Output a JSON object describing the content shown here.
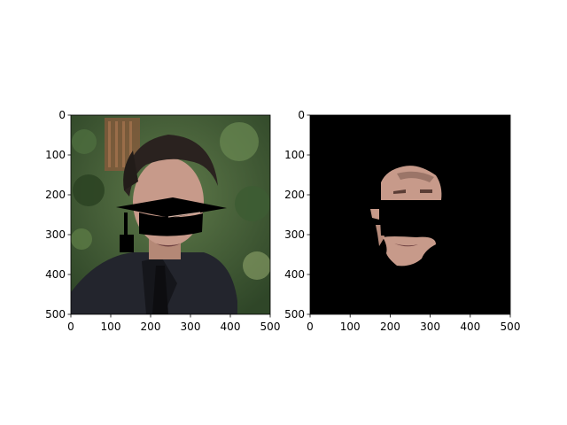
{
  "chart_data": [
    {
      "type": "image",
      "content": "photo of a man with a black graduation cap overlay",
      "xlabel": "",
      "ylabel": "",
      "xlim": [
        0,
        500
      ],
      "ylim": [
        500,
        0
      ],
      "x_ticks": [
        0,
        100,
        200,
        300,
        400,
        500
      ],
      "y_ticks": [
        0,
        100,
        200,
        300,
        400,
        500
      ],
      "grid": false
    },
    {
      "type": "image",
      "content": "segmented face region on black background",
      "xlabel": "",
      "ylabel": "",
      "xlim": [
        0,
        500
      ],
      "ylim": [
        500,
        0
      ],
      "x_ticks": [
        0,
        100,
        200,
        300,
        400,
        500
      ],
      "y_ticks": [
        0,
        100,
        200,
        300,
        400,
        500
      ],
      "grid": false
    }
  ],
  "colors": {
    "axes_frame": "#000000",
    "mask_background": "#000000",
    "skin": "#c79a8a",
    "hair": "#2a221f",
    "jacket": "#23252d",
    "foliage": "#3b5634",
    "cap": "#000000"
  }
}
